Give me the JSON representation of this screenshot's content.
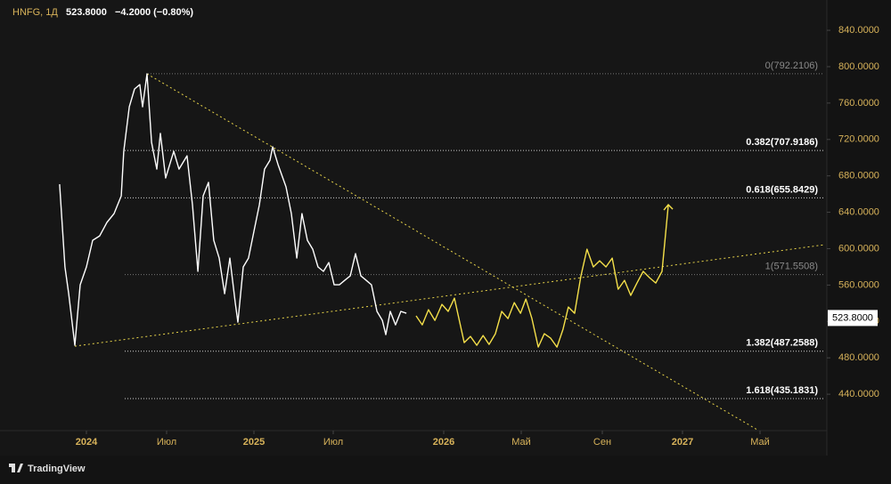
{
  "chart_data": {
    "type": "line",
    "symbol": "HNFG, 1Д",
    "last": "523.8000",
    "change": "−4.2000 (−0.80%)",
    "watermark": "TradingView",
    "price_tag": {
      "value": 523.8,
      "label": "523.8000"
    },
    "xlim": [
      2023.484,
      2027.62
    ],
    "xticks": [
      2024,
      {
        "value": 2024.5,
        "label": "Июл"
      },
      2025,
      {
        "value": 2025.5,
        "label": "Июл"
      },
      2026,
      {
        "value": 2026.333,
        "label": "Май"
      },
      {
        "value": 2026.667,
        "label": "Сен"
      },
      2027,
      {
        "value": 2027.333,
        "label": "Май"
      }
    ],
    "ylim": [
      400,
      873.3
    ],
    "yticks": [
      {
        "value": 440,
        "label": "440.0000"
      },
      {
        "value": 480,
        "label": "480.0000"
      },
      {
        "value": 520,
        "label": "520.0000"
      },
      {
        "value": 560,
        "label": "560.0000"
      },
      {
        "value": 600,
        "label": "600.0000"
      },
      {
        "value": 640,
        "label": "640.0000"
      },
      {
        "value": 680,
        "label": "680.0000"
      },
      {
        "value": 720,
        "label": "720.0000"
      },
      {
        "value": 760,
        "label": "760.0000"
      },
      {
        "value": 800,
        "label": "800.0000"
      },
      {
        "value": 840,
        "label": "840.0000"
      }
    ],
    "series": [
      {
        "color": "#ffffff",
        "x": [
          2023.84,
          2023.872,
          2023.894,
          2023.931,
          2023.963,
          2024.0,
          2024.039,
          2024.083,
          2024.128,
          2024.172,
          2024.217,
          2024.233,
          2024.267,
          2024.3,
          2024.333,
          2024.35,
          2024.378,
          2024.406,
          2024.439,
          2024.461,
          2024.494,
          2024.541,
          2024.571,
          2024.617,
          2024.648,
          2024.679,
          2024.709,
          2024.74,
          2024.77,
          2024.801,
          2024.832,
          2024.862,
          2024.893,
          2024.908,
          2024.939,
          2024.969,
          2025.0,
          2025.034,
          2025.067,
          2025.101,
          2025.118,
          2025.152,
          2025.202,
          2025.236,
          2025.27,
          2025.303,
          2025.337,
          2025.371,
          2025.404,
          2025.438,
          2025.472,
          2025.504,
          2025.528,
          2025.552,
          2025.577,
          2025.601,
          2025.625,
          2025.649,
          2025.673,
          2025.698,
          2025.722,
          2025.738,
          2025.758,
          2025.782,
          2025.806,
          2025.831
        ],
        "values": [
          670.8,
          579.9,
          550.5,
          493.8,
          560.3,
          579.9,
          609.2,
          614.1,
          628.8,
          638.5,
          658.1,
          707.0,
          755.9,
          775.5,
          780.3,
          755.9,
          792.1,
          716.8,
          687.4,
          726.6,
          677.7,
          707.0,
          687.4,
          702.1,
          648.3,
          575.0,
          658.1,
          672.8,
          609.2,
          589.6,
          550.5,
          589.6,
          540.7,
          519.2,
          579.9,
          589.6,
          619.0,
          648.3,
          687.4,
          697.2,
          711.9,
          692.3,
          667.9,
          638.5,
          589.6,
          638.5,
          609.2,
          599.4,
          579.9,
          575.0,
          584.7,
          560.3,
          560.3,
          565.2,
          570.1,
          594.5,
          570.1,
          565.2,
          560.3,
          531.0,
          521.2,
          505.5,
          531.0,
          516.3,
          531.0,
          529.0
        ]
      },
      {
        "color": "#f5e04a",
        "x": [
          2025.875,
          2025.903,
          2025.931,
          2025.96,
          2025.992,
          2026.019,
          2026.046,
          2026.088,
          2026.115,
          2026.142,
          2026.169,
          2026.195,
          2026.222,
          2026.249,
          2026.276,
          2026.303,
          2026.33,
          2026.352,
          2026.377,
          2026.403,
          2026.428,
          2026.454,
          2026.48,
          2026.505,
          2026.527,
          2026.553,
          2026.579,
          2026.604,
          2026.63,
          2026.656,
          2026.682,
          2026.708,
          2026.733,
          2026.759,
          2026.785,
          2026.811,
          2026.837,
          2026.863,
          2026.889,
          2026.915,
          2026.941
        ],
        "values": [
          526.1,
          516.3,
          532.9,
          521.2,
          538.8,
          531.0,
          545.6,
          496.7,
          503.6,
          493.8,
          504.5,
          494.8,
          506.5,
          531.0,
          523.1,
          540.7,
          529.0,
          544.6,
          523.1,
          491.8,
          506.5,
          501.6,
          491.8,
          511.4,
          535.8,
          529.0,
          570.1,
          599.4,
          579.9,
          586.7,
          579.9,
          589.6,
          555.4,
          565.2,
          548.6,
          562.2,
          575.0,
          568.1,
          562.2,
          575.0,
          648.3
        ]
      }
    ],
    "fib_levels": [
      {
        "label": "0(792.2106)",
        "value": 792.2106,
        "color": "#8a8a8a"
      },
      {
        "label": "0.382(707.9186)",
        "value": 707.9186,
        "color": "#ffffff"
      },
      {
        "label": "0.618(655.8429)",
        "value": 655.8429,
        "color": "#ffffff"
      },
      {
        "label": "1(571.5508)",
        "value": 571.5508,
        "color": "#8a8a8a"
      },
      {
        "label": "1.382(487.2588)",
        "value": 487.2588,
        "color": "#ffffff"
      },
      {
        "label": "1.618(435.1831)",
        "value": 435.1831,
        "color": "#ffffff"
      }
    ],
    "trendlines": [
      {
        "color": "#e8d44a",
        "x": [
          2024.378,
          2027.322
        ],
        "values": [
          792.1,
          400.9
        ]
      },
      {
        "color": "#e8d44a",
        "x": [
          2023.931,
          2027.609
        ],
        "values": [
          492.8,
          604.3
        ]
      }
    ]
  }
}
